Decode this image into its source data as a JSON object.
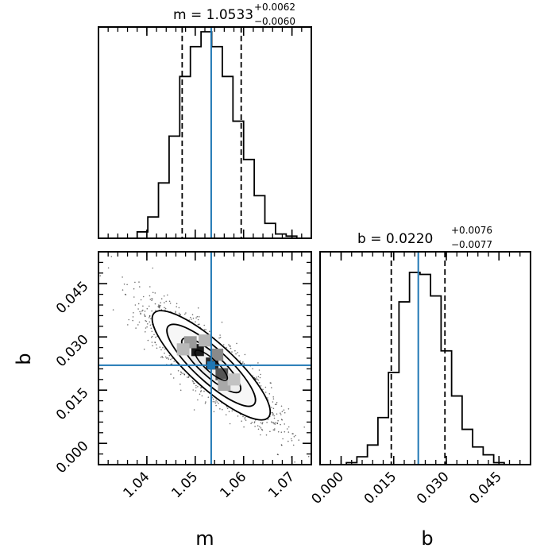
{
  "chart_data": [
    {
      "type": "histogram",
      "panel": "m marginal",
      "title": {
        "prefix": "m = ",
        "value": "1.0533",
        "plus": "+0.0062",
        "minus": "−0.0060"
      },
      "xlim": [
        1.03,
        1.074
      ],
      "x_edges": [
        1.0314,
        1.0336,
        1.0358,
        1.038,
        1.0402,
        1.0424,
        1.0446,
        1.0468,
        1.049,
        1.0512,
        1.0534,
        1.0556,
        1.0578,
        1.06,
        1.0622,
        1.0644,
        1.0666,
        1.0688,
        1.071,
        1.0732
      ],
      "counts": [
        0,
        0,
        0,
        3,
        10,
        26,
        48,
        76,
        90,
        97,
        90,
        76,
        55,
        37,
        20,
        7,
        2,
        1,
        0
      ],
      "quantiles": [
        1.0473,
        1.0595
      ],
      "truth": 1.0533
    },
    {
      "type": "scatter",
      "panel": "m-b joint",
      "xlabel": "m",
      "ylabel": "b",
      "xlim": [
        1.03,
        1.074
      ],
      "ylim": [
        -0.006,
        0.054
      ],
      "x_ticks": [
        "1.04",
        "1.05",
        "1.06",
        "1.07"
      ],
      "y_ticks": [
        "0.000",
        "0.015",
        "0.030",
        "0.045"
      ],
      "correlation": -0.85,
      "center": [
        1.0533,
        0.022
      ],
      "density_cells": [
        {
          "x": 1.0505,
          "y": 0.0263,
          "shade": "#1a1a1a"
        },
        {
          "x": 1.0535,
          "y": 0.0225,
          "shade": "#262626"
        },
        {
          "x": 1.0555,
          "y": 0.0195,
          "shade": "#555555"
        },
        {
          "x": 1.049,
          "y": 0.0285,
          "shade": "#9a9a9a"
        },
        {
          "x": 1.052,
          "y": 0.029,
          "shade": "#b5b5b5"
        },
        {
          "x": 1.0475,
          "y": 0.0265,
          "shade": "#b8b8b8"
        },
        {
          "x": 1.056,
          "y": 0.0165,
          "shade": "#a8a8a8"
        },
        {
          "x": 1.058,
          "y": 0.018,
          "shade": "#c2c2c2"
        },
        {
          "x": 1.0545,
          "y": 0.025,
          "shade": "#8a8a8a"
        }
      ],
      "truth": [
        1.0533,
        0.022
      ]
    },
    {
      "type": "histogram",
      "panel": "b marginal",
      "title": {
        "prefix": "b = ",
        "value": "0.0220",
        "plus": "+0.0076",
        "minus": "−0.0077"
      },
      "xlabel": "b",
      "xlim": [
        -0.006,
        0.054
      ],
      "x_ticks": [
        "0.000",
        "0.015",
        "0.030",
        "0.045"
      ],
      "x_edges": [
        -0.0045,
        -0.0015,
        0.0015,
        0.0045,
        0.0075,
        0.0105,
        0.0135,
        0.0165,
        0.0195,
        0.0225,
        0.0255,
        0.0285,
        0.0315,
        0.0345,
        0.0375,
        0.0405,
        0.0435,
        0.0465,
        0.0495
      ],
      "counts": [
        0,
        0,
        1,
        4,
        10,
        24,
        47,
        83,
        98,
        97,
        86,
        58,
        35,
        18,
        9,
        5,
        1,
        0
      ],
      "quantiles": [
        0.0143,
        0.0296
      ],
      "truth": 0.022
    }
  ],
  "colors": {
    "truth": "#1f77b4",
    "ink": "#000000"
  }
}
